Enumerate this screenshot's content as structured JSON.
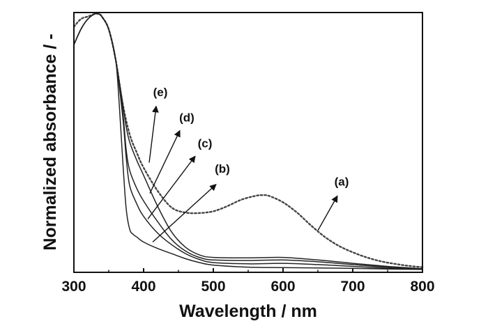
{
  "chart_data": {
    "type": "line",
    "xlabel": "Wavelength / nm",
    "ylabel": "Normalized absorbance / -",
    "xlim": [
      300,
      800
    ],
    "ylim": [
      0,
      1
    ],
    "x_ticks": [
      "300",
      "400",
      "500",
      "600",
      "700",
      "800"
    ],
    "y_ticks_labeled": false,
    "grid": false,
    "legend": "none (curves labeled by arrow annotations)",
    "series": [
      {
        "name": "(a)",
        "style": "dotted",
        "x": [
          300,
          310,
          320,
          330,
          335,
          340,
          350,
          360,
          370,
          380,
          390,
          400,
          420,
          440,
          460,
          480,
          500,
          520,
          540,
          560,
          570,
          580,
          600,
          620,
          640,
          660,
          680,
          700,
          720,
          740,
          760,
          780,
          800
        ],
        "y": [
          0.95,
          0.98,
          0.99,
          1.0,
          1.0,
          0.99,
          0.94,
          0.82,
          0.65,
          0.53,
          0.46,
          0.4,
          0.31,
          0.245,
          0.225,
          0.223,
          0.23,
          0.25,
          0.275,
          0.29,
          0.293,
          0.29,
          0.265,
          0.225,
          0.175,
          0.13,
          0.095,
          0.07,
          0.05,
          0.035,
          0.025,
          0.017,
          0.012
        ]
      },
      {
        "name": "(b)",
        "style": "solid",
        "x": [
          300,
          310,
          320,
          330,
          335,
          340,
          350,
          360,
          365,
          370,
          375,
          380,
          385,
          390,
          400,
          420,
          440,
          460,
          480,
          500,
          550,
          600,
          650,
          700,
          750,
          800
        ],
        "y": [
          0.88,
          0.94,
          0.98,
          1.0,
          1.0,
          0.99,
          0.94,
          0.82,
          0.65,
          0.43,
          0.24,
          0.16,
          0.14,
          0.13,
          0.11,
          0.085,
          0.065,
          0.045,
          0.03,
          0.02,
          0.012,
          0.01,
          0.009,
          0.007,
          0.005,
          0.003
        ]
      },
      {
        "name": "(c)",
        "style": "solid",
        "x": [
          300,
          310,
          320,
          330,
          335,
          340,
          350,
          360,
          370,
          375,
          380,
          390,
          400,
          420,
          440,
          460,
          480,
          500,
          550,
          600,
          650,
          700,
          750,
          800
        ],
        "y": [
          0.88,
          0.94,
          0.98,
          1.0,
          1.0,
          0.99,
          0.94,
          0.82,
          0.6,
          0.44,
          0.33,
          0.26,
          0.21,
          0.145,
          0.1,
          0.065,
          0.042,
          0.03,
          0.025,
          0.027,
          0.022,
          0.015,
          0.008,
          0.004
        ]
      },
      {
        "name": "(d)",
        "style": "solid",
        "x": [
          300,
          310,
          320,
          330,
          335,
          340,
          350,
          360,
          370,
          375,
          380,
          390,
          400,
          420,
          440,
          460,
          480,
          500,
          550,
          600,
          650,
          700,
          750,
          800
        ],
        "y": [
          0.88,
          0.94,
          0.98,
          1.0,
          1.0,
          0.99,
          0.94,
          0.82,
          0.62,
          0.47,
          0.39,
          0.32,
          0.27,
          0.19,
          0.12,
          0.075,
          0.05,
          0.04,
          0.038,
          0.04,
          0.033,
          0.022,
          0.012,
          0.005
        ]
      },
      {
        "name": "(e)",
        "style": "solid",
        "x": [
          300,
          310,
          320,
          330,
          335,
          340,
          350,
          360,
          370,
          375,
          380,
          390,
          400,
          420,
          440,
          460,
          480,
          500,
          550,
          600,
          650,
          700,
          750,
          800
        ],
        "y": [
          0.88,
          0.94,
          0.98,
          1.0,
          1.0,
          0.99,
          0.94,
          0.82,
          0.65,
          0.56,
          0.5,
          0.43,
          0.37,
          0.25,
          0.15,
          0.09,
          0.06,
          0.05,
          0.048,
          0.05,
          0.04,
          0.027,
          0.015,
          0.006
        ]
      }
    ],
    "annotations": [
      {
        "text": "(a)",
        "label_at": [
          684,
          0.33
        ],
        "arrow_from": [
          650,
          0.155
        ],
        "arrow_to": [
          678,
          0.29
        ]
      },
      {
        "text": "(b)",
        "label_at": [
          513,
          0.38
        ],
        "arrow_from": [
          413,
          0.11
        ],
        "arrow_to": [
          504,
          0.335
        ]
      },
      {
        "text": "(c)",
        "label_at": [
          488,
          0.48
        ],
        "arrow_from": [
          406,
          0.2
        ],
        "arrow_to": [
          474,
          0.445
        ]
      },
      {
        "text": "(d)",
        "label_at": [
          462,
          0.58
        ],
        "arrow_from": [
          409,
          0.3
        ],
        "arrow_to": [
          452,
          0.545
        ]
      },
      {
        "text": "(e)",
        "label_at": [
          424,
          0.68
        ],
        "arrow_from": [
          408,
          0.42
        ],
        "arrow_to": [
          418,
          0.64
        ]
      }
    ],
    "colors": {
      "axis": "#111111",
      "curves": "#222222",
      "dotted": "#444444"
    }
  }
}
